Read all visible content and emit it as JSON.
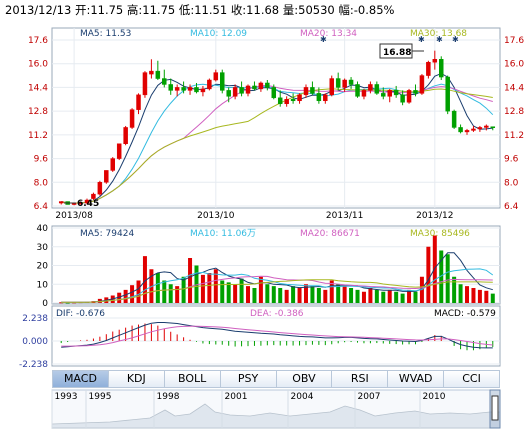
{
  "header": {
    "date": "2013/12/13",
    "open": "开:11.75",
    "high": "高:11.75",
    "low": "低:11.51",
    "close": "收:11.68",
    "volume": "量:50530",
    "change": "幅:-0.85%"
  },
  "price_legend": {
    "ma5": "MA5: 11.53",
    "ma10": "MA10: 12.09",
    "ma20": "MA20: 13.34",
    "ma30": "MA30: 13.68"
  },
  "volume_legend": {
    "ma5": "MA5: 79424",
    "ma10": "MA10: 11.06万",
    "ma20": "MA20: 86671",
    "ma30": "MA30: 85496"
  },
  "macd_legend": {
    "dif": "DIF: -0.676",
    "dea": "DEA: -0.386",
    "macd": "MACD: -0.579"
  },
  "annotations": {
    "high": "16.88",
    "low": "6.45"
  },
  "tabs": [
    "MACD",
    "KDJ",
    "BOLL",
    "PSY",
    "OBV",
    "RSI",
    "WVAD",
    "CCI"
  ],
  "timeline_labels": [
    "1993",
    "1995",
    "1998",
    "2001",
    "2004",
    "2007",
    "2010"
  ],
  "colors": {
    "up": "#e00000",
    "down": "#00a000",
    "ma5": "#1a3d6e",
    "ma10": "#33bbe0",
    "ma20": "#d060c0",
    "ma30": "#a8b820"
  },
  "chart_data": [
    {
      "type": "candlestick",
      "xlabels": [
        "2013/08",
        "2013/10",
        "2013/11",
        "2013/12"
      ],
      "yticks": [
        6.4,
        8.0,
        9.6,
        11.2,
        12.8,
        14.4,
        16.0,
        17.6
      ],
      "ylim": [
        6.4,
        17.6
      ],
      "candles": [
        [
          6.6,
          6.7,
          6.5,
          6.7
        ],
        [
          6.7,
          6.7,
          6.5,
          6.5
        ],
        [
          6.5,
          6.6,
          6.45,
          6.6
        ],
        [
          6.6,
          6.7,
          6.5,
          6.6
        ],
        [
          6.6,
          6.9,
          6.5,
          6.8
        ],
        [
          6.9,
          7.3,
          6.8,
          7.2
        ],
        [
          7.2,
          8.1,
          7.1,
          8.0
        ],
        [
          8.0,
          8.8,
          7.9,
          8.8
        ],
        [
          8.8,
          9.7,
          8.7,
          9.6
        ],
        [
          9.6,
          10.6,
          9.5,
          10.6
        ],
        [
          10.6,
          11.8,
          10.5,
          11.7
        ],
        [
          11.7,
          13.0,
          11.6,
          12.9
        ],
        [
          12.9,
          14.0,
          12.6,
          13.9
        ],
        [
          13.9,
          15.5,
          13.7,
          15.4
        ],
        [
          15.3,
          16.3,
          15.0,
          15.5
        ],
        [
          15.5,
          16.2,
          14.9,
          15.0
        ],
        [
          15.0,
          15.6,
          14.4,
          14.6
        ],
        [
          14.6,
          15.0,
          13.9,
          14.2
        ],
        [
          14.2,
          14.6,
          13.8,
          14.4
        ],
        [
          14.4,
          14.8,
          14.0,
          14.2
        ],
        [
          14.2,
          14.6,
          13.9,
          14.4
        ],
        [
          14.4,
          14.7,
          14.0,
          14.1
        ],
        [
          14.1,
          14.5,
          13.8,
          14.3
        ],
        [
          14.3,
          15.0,
          14.2,
          14.9
        ],
        [
          14.9,
          15.6,
          14.8,
          15.4
        ],
        [
          15.4,
          15.6,
          14.0,
          14.2
        ],
        [
          14.2,
          14.4,
          13.4,
          13.8
        ],
        [
          13.8,
          14.6,
          13.6,
          14.4
        ],
        [
          14.4,
          14.8,
          13.8,
          14.0
        ],
        [
          14.0,
          14.6,
          13.8,
          14.5
        ],
        [
          14.5,
          14.8,
          14.2,
          14.3
        ],
        [
          14.3,
          14.8,
          14.1,
          14.7
        ],
        [
          14.7,
          14.9,
          14.2,
          14.4
        ],
        [
          14.4,
          14.6,
          13.6,
          13.7
        ],
        [
          13.7,
          14.2,
          13.1,
          13.3
        ],
        [
          13.3,
          13.8,
          13.1,
          13.6
        ],
        [
          13.6,
          14.0,
          13.3,
          13.5
        ],
        [
          13.5,
          14.0,
          13.3,
          13.9
        ],
        [
          13.9,
          14.6,
          13.7,
          14.4
        ],
        [
          14.4,
          14.8,
          13.9,
          14.0
        ],
        [
          14.0,
          14.4,
          13.3,
          13.5
        ],
        [
          13.5,
          14.0,
          13.3,
          13.9
        ],
        [
          13.9,
          15.2,
          13.8,
          15.0
        ],
        [
          15.0,
          15.4,
          14.2,
          14.4
        ],
        [
          14.4,
          15.0,
          14.1,
          14.9
        ],
        [
          14.9,
          15.1,
          14.3,
          14.6
        ],
        [
          14.6,
          14.8,
          13.7,
          13.8
        ],
        [
          13.8,
          14.3,
          13.6,
          14.2
        ],
        [
          14.2,
          14.8,
          14.0,
          14.6
        ],
        [
          14.6,
          14.8,
          13.9,
          14.0
        ],
        [
          14.0,
          14.4,
          13.6,
          13.8
        ],
        [
          13.8,
          14.3,
          13.4,
          14.2
        ],
        [
          14.2,
          14.5,
          13.7,
          13.9
        ],
        [
          13.9,
          14.2,
          13.2,
          13.4
        ],
        [
          13.4,
          14.3,
          13.3,
          14.2
        ],
        [
          14.2,
          14.6,
          13.8,
          14.0
        ],
        [
          14.0,
          15.3,
          13.9,
          15.2
        ],
        [
          15.2,
          16.2,
          15.0,
          16.1
        ],
        [
          16.1,
          16.88,
          15.6,
          16.3
        ],
        [
          16.3,
          16.5,
          14.9,
          15.1
        ],
        [
          15.1,
          15.2,
          12.6,
          12.8
        ],
        [
          12.8,
          12.9,
          11.6,
          11.7
        ],
        [
          11.7,
          11.9,
          11.3,
          11.4
        ],
        [
          11.4,
          11.6,
          11.2,
          11.5
        ],
        [
          11.5,
          11.8,
          11.4,
          11.6
        ],
        [
          11.6,
          11.8,
          11.4,
          11.7
        ],
        [
          11.7,
          11.9,
          11.5,
          11.8
        ],
        [
          11.75,
          11.75,
          11.51,
          11.68
        ]
      ]
    },
    {
      "type": "bar",
      "name": "volume",
      "yticks": [
        0,
        10,
        20,
        30,
        40
      ],
      "ylim": [
        0,
        40
      ],
      "values": [
        0.4,
        0.3,
        0.4,
        0.5,
        0.6,
        1.0,
        2.2,
        3.0,
        4.0,
        5.5,
        7.0,
        9.5,
        12.0,
        25.0,
        18.0,
        16.0,
        12.0,
        10.0,
        9.0,
        14.0,
        24.0,
        20.0,
        15.0,
        16.0,
        18.0,
        12.0,
        11.0,
        10.0,
        13.0,
        9.0,
        8.0,
        14.0,
        10.0,
        9.0,
        8.0,
        7.0,
        9.0,
        8.0,
        10.0,
        9.0,
        8.0,
        7.0,
        12.0,
        10.0,
        9.0,
        8.0,
        7.0,
        6.0,
        8.0,
        7.0,
        6.0,
        7.0,
        6.0,
        5.0,
        7.0,
        6.0,
        14.0,
        30.0,
        36.0,
        28.0,
        26.0,
        14.0,
        10.0,
        9.0,
        8.0,
        7.0,
        6.5,
        5.0
      ]
    },
    {
      "type": "macd",
      "yticks": [
        2.238,
        0.0,
        -2.238
      ],
      "ylim": [
        -2.238,
        2.238
      ],
      "dif": [
        -0.6,
        -0.55,
        -0.5,
        -0.45,
        -0.4,
        -0.3,
        -0.15,
        0.05,
        0.3,
        0.55,
        0.8,
        1.05,
        1.3,
        1.55,
        1.72,
        1.8,
        1.8,
        1.75,
        1.7,
        1.6,
        1.5,
        1.4,
        1.3,
        1.25,
        1.2,
        1.15,
        1.05,
        0.95,
        0.9,
        0.85,
        0.8,
        0.75,
        0.72,
        0.68,
        0.6,
        0.55,
        0.5,
        0.45,
        0.42,
        0.4,
        0.35,
        0.3,
        0.3,
        0.32,
        0.35,
        0.35,
        0.3,
        0.25,
        0.22,
        0.2,
        0.15,
        0.1,
        0.05,
        0.0,
        -0.02,
        -0.05,
        0.05,
        0.25,
        0.45,
        0.45,
        0.2,
        -0.1,
        -0.35,
        -0.5,
        -0.6,
        -0.65,
        -0.67,
        -0.676
      ],
      "dea": [
        -0.5,
        -0.5,
        -0.5,
        -0.48,
        -0.46,
        -0.42,
        -0.36,
        -0.28,
        -0.16,
        0.0,
        0.15,
        0.3,
        0.5,
        0.7,
        0.9,
        1.05,
        1.2,
        1.3,
        1.38,
        1.42,
        1.44,
        1.44,
        1.42,
        1.4,
        1.37,
        1.33,
        1.28,
        1.22,
        1.16,
        1.1,
        1.04,
        0.98,
        0.93,
        0.88,
        0.82,
        0.77,
        0.72,
        0.67,
        0.62,
        0.58,
        0.54,
        0.5,
        0.46,
        0.43,
        0.41,
        0.4,
        0.38,
        0.36,
        0.33,
        0.3,
        0.27,
        0.24,
        0.2,
        0.17,
        0.14,
        0.11,
        0.1,
        0.12,
        0.16,
        0.2,
        0.2,
        0.14,
        0.05,
        -0.05,
        -0.15,
        -0.25,
        -0.33,
        -0.386
      ]
    }
  ]
}
